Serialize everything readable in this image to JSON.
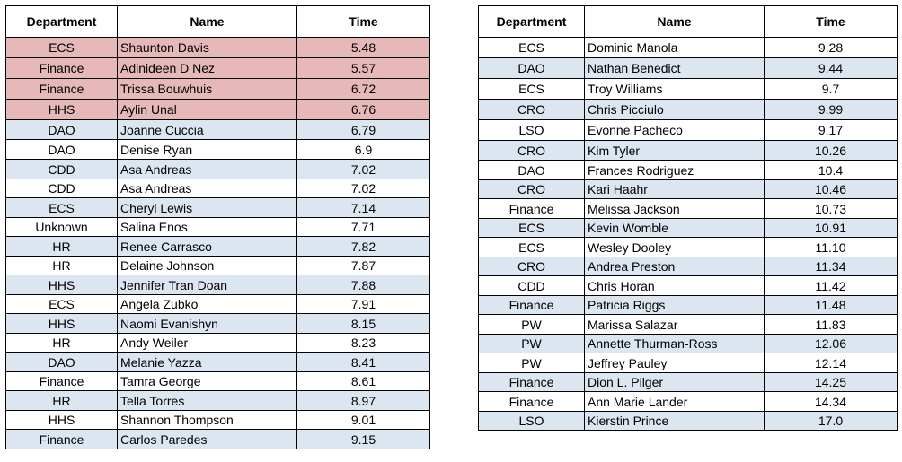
{
  "colors": {
    "blue_band": "#dce6f1",
    "highlight": "#e6b8b7",
    "white": "#ffffff"
  },
  "headers": {
    "department": "Department",
    "name": "Name",
    "time": "Time"
  },
  "left_table": [
    {
      "department": "ECS",
      "name": "Shaunton Davis",
      "time": "5.48",
      "style": "pink"
    },
    {
      "department": "Finance",
      "name": "Adinideen D Nez",
      "time": "5.57",
      "style": "pink"
    },
    {
      "department": "Finance",
      "name": "Trissa Bouwhuis",
      "time": "6.72",
      "style": "pink"
    },
    {
      "department": "HHS",
      "name": "Aylin Unal",
      "time": "6.76",
      "style": "pink"
    },
    {
      "department": "DAO",
      "name": "Joanne Cuccia",
      "time": "6.79",
      "style": "blue"
    },
    {
      "department": "DAO",
      "name": "Denise Ryan",
      "time": "6.9",
      "style": "white"
    },
    {
      "department": "CDD",
      "name": "Asa Andreas",
      "time": "7.02",
      "style": "blue"
    },
    {
      "department": "CDD",
      "name": "Asa Andreas",
      "time": "7.02",
      "style": "white"
    },
    {
      "department": "ECS",
      "name": "Cheryl Lewis",
      "time": "7.14",
      "style": "blue"
    },
    {
      "department": "Unknown",
      "name": "Salina Enos",
      "time": "7.71",
      "style": "white"
    },
    {
      "department": "HR",
      "name": "Renee Carrasco",
      "time": "7.82",
      "style": "blue"
    },
    {
      "department": "HR",
      "name": "Delaine Johnson",
      "time": "7.87",
      "style": "white"
    },
    {
      "department": "HHS",
      "name": "Jennifer Tran Doan",
      "time": "7.88",
      "style": "blue"
    },
    {
      "department": "ECS",
      "name": "Angela Zubko",
      "time": "7.91",
      "style": "white"
    },
    {
      "department": "HHS",
      "name": "Naomi Evanishyn",
      "time": "8.15",
      "style": "blue"
    },
    {
      "department": "HR",
      "name": "Andy Weiler",
      "time": "8.23",
      "style": "white"
    },
    {
      "department": "DAO",
      "name": "Melanie Yazza",
      "time": "8.41",
      "style": "blue"
    },
    {
      "department": "Finance",
      "name": "Tamra George",
      "time": "8.61",
      "style": "white"
    },
    {
      "department": "HR",
      "name": "Tella Torres",
      "time": "8.97",
      "style": "blue"
    },
    {
      "department": "HHS",
      "name": "Shannon Thompson",
      "time": "9.01",
      "style": "white"
    },
    {
      "department": "Finance",
      "name": "Carlos Paredes",
      "time": "9.15",
      "style": "blue"
    }
  ],
  "right_table": [
    {
      "department": "ECS",
      "name": "Dominic Manola",
      "time": "9.28",
      "style": "white"
    },
    {
      "department": "DAO",
      "name": "Nathan Benedict",
      "time": "9.44",
      "style": "blue"
    },
    {
      "department": "ECS",
      "name": "Troy Williams",
      "time": "9.7",
      "style": "white"
    },
    {
      "department": "CRO",
      "name": "Chris Picciulo",
      "time": "9.99",
      "style": "blue"
    },
    {
      "department": "LSO",
      "name": "Evonne Pacheco",
      "time": "9.17",
      "style": "white"
    },
    {
      "department": "CRO",
      "name": "Kim Tyler",
      "time": "10.26",
      "style": "blue"
    },
    {
      "department": "DAO",
      "name": "Frances Rodriguez",
      "time": "10.4",
      "style": "white"
    },
    {
      "department": "CRO",
      "name": "Kari Haahr",
      "time": "10.46",
      "style": "blue"
    },
    {
      "department": "Finance",
      "name": "Melissa Jackson",
      "time": "10.73",
      "style": "white"
    },
    {
      "department": "ECS",
      "name": "Kevin Womble",
      "time": "10.91",
      "style": "blue"
    },
    {
      "department": "ECS",
      "name": "Wesley Dooley",
      "time": "11.10",
      "style": "white"
    },
    {
      "department": "CRO",
      "name": "Andrea Preston",
      "time": "11.34",
      "style": "blue"
    },
    {
      "department": "CDD",
      "name": "Chris Horan",
      "time": "11.42",
      "style": "white"
    },
    {
      "department": "Finance",
      "name": "Patricia Riggs",
      "time": "11.48",
      "style": "blue"
    },
    {
      "department": "PW",
      "name": "Marissa Salazar",
      "time": "11.83",
      "style": "white"
    },
    {
      "department": "PW",
      "name": "Annette Thurman-Ross",
      "time": "12.06",
      "style": "blue"
    },
    {
      "department": "PW",
      "name": "Jeffrey Pauley",
      "time": "12.14",
      "style": "white"
    },
    {
      "department": "Finance",
      "name": "Dion L. Pilger",
      "time": "14.25",
      "style": "blue"
    },
    {
      "department": "Finance",
      "name": "Ann Marie Lander",
      "time": "14.34",
      "style": "white"
    },
    {
      "department": "LSO",
      "name": "Kierstin Prince",
      "time": "17.0",
      "style": "blue"
    }
  ]
}
